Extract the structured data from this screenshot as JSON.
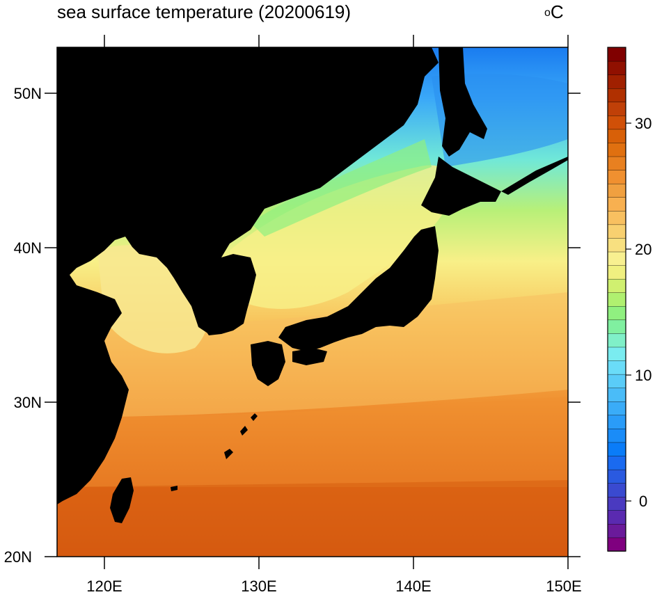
{
  "title": "sea surface temperature (20200619)",
  "units": {
    "prefix": "o",
    "main": "C"
  },
  "lat_ticks": [
    "50N",
    "40N",
    "30N",
    "20N"
  ],
  "lon_ticks": [
    "120E",
    "130E",
    "140E",
    "150E"
  ],
  "colorbar": {
    "labels": [
      "30",
      "20",
      "10",
      "0"
    ],
    "min": -4,
    "max": 36,
    "step": 1,
    "colors": [
      "#7f007f",
      "#6a1a9a",
      "#5a2ab0",
      "#4a3ac0",
      "#3a4ad0",
      "#2a5ae0",
      "#1a6af0",
      "#0a7cf8",
      "#1a8cf8",
      "#2a9cf8",
      "#3aacf8",
      "#4abcf8",
      "#5accf8",
      "#6adcf8",
      "#7aecf0",
      "#80f0c8",
      "#80f0a0",
      "#90f080",
      "#b0f070",
      "#d0f070",
      "#f0f080",
      "#f8f090",
      "#f8e080",
      "#f8d070",
      "#f8c060",
      "#f8b050",
      "#f0a040",
      "#f09030",
      "#e88020",
      "#e07010",
      "#d86008",
      "#d05008",
      "#c04008",
      "#b03000",
      "#a02000",
      "#901000",
      "#800000"
    ]
  }
}
